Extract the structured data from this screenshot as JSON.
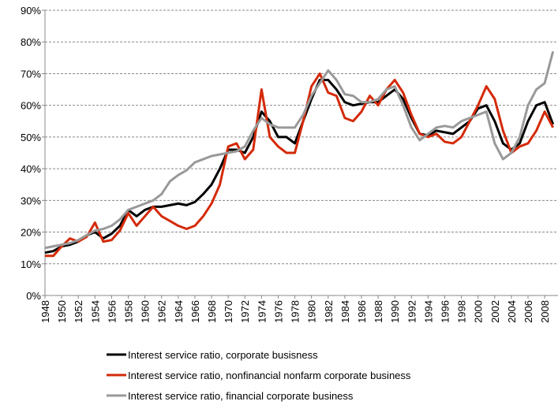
{
  "chart_data": {
    "type": "line",
    "x": [
      1948,
      1949,
      1950,
      1951,
      1952,
      1953,
      1954,
      1955,
      1956,
      1957,
      1958,
      1959,
      1960,
      1961,
      1962,
      1963,
      1964,
      1965,
      1966,
      1967,
      1968,
      1969,
      1970,
      1971,
      1972,
      1973,
      1974,
      1975,
      1976,
      1977,
      1978,
      1979,
      1980,
      1981,
      1982,
      1983,
      1984,
      1985,
      1986,
      1987,
      1988,
      1989,
      1990,
      1991,
      1992,
      1993,
      1994,
      1995,
      1996,
      1997,
      1998,
      1999,
      2000,
      2001,
      2002,
      2003,
      2004,
      2005,
      2006,
      2007,
      2008,
      2009
    ],
    "series": [
      {
        "name": "Interest service ratio, corporate busisness",
        "color": "#000000",
        "values": [
          13.5,
          14,
          15.5,
          16,
          17,
          19,
          20,
          18,
          19.5,
          22,
          27,
          25,
          27,
          28,
          28,
          28.5,
          29,
          28.5,
          29.5,
          32,
          35,
          40,
          46,
          46,
          45,
          50,
          58,
          55,
          50,
          50,
          48,
          55,
          62,
          68,
          68,
          65,
          61,
          60,
          60.5,
          61,
          61,
          63,
          65,
          62,
          56,
          51,
          50.5,
          52,
          51.5,
          51,
          53,
          55,
          59,
          60,
          55,
          48,
          46,
          48,
          55,
          60,
          61,
          54
        ]
      },
      {
        "name": "Interest service ratio, nonfinancial nonfarm corporate business",
        "color": "#d42a0a",
        "values": [
          12.5,
          12.5,
          15.5,
          18,
          17,
          18.5,
          23,
          17,
          17.5,
          20.5,
          26,
          22,
          25,
          28,
          25,
          23.5,
          22,
          21,
          22,
          25,
          29,
          35,
          47,
          48,
          43,
          46,
          65,
          50,
          47,
          45,
          45,
          55,
          66,
          70,
          64,
          63,
          56,
          55,
          58,
          63,
          60,
          65,
          68,
          64,
          57,
          51,
          50,
          51,
          48.5,
          48,
          50,
          55,
          60,
          66,
          62,
          52,
          45,
          47,
          48,
          52,
          58,
          53
        ]
      },
      {
        "name": "Interest service ratio, financial corporate business",
        "color": "#999999",
        "values": [
          15,
          15.5,
          16,
          16.5,
          17.5,
          19,
          20.5,
          21,
          22,
          24,
          27,
          28,
          29,
          30,
          32,
          36,
          38,
          39.5,
          42,
          43,
          44,
          44.5,
          45,
          45.5,
          47,
          52,
          56,
          54,
          53,
          53,
          53,
          57,
          63,
          67,
          71,
          68,
          63.5,
          63,
          61,
          61,
          62,
          65,
          66,
          60,
          53,
          49,
          51,
          53,
          53.5,
          53,
          55,
          56,
          57,
          58,
          48,
          43,
          45,
          50,
          60,
          65,
          67,
          77
        ]
      }
    ],
    "xlim": [
      1948,
      2009.6
    ],
    "xticks": [
      1948,
      1950,
      1952,
      1954,
      1956,
      1958,
      1960,
      1962,
      1964,
      1966,
      1968,
      1970,
      1972,
      1974,
      1976,
      1978,
      1980,
      1982,
      1984,
      1986,
      1988,
      1990,
      1992,
      1994,
      1996,
      1998,
      2000,
      2002,
      2004,
      2006,
      2008
    ],
    "ylim": [
      0,
      90
    ],
    "yticks": [
      {
        "value": 0,
        "label": "0%"
      },
      {
        "value": 10,
        "label": "10%"
      },
      {
        "value": 20,
        "label": "20%"
      },
      {
        "value": 30,
        "label": "30%"
      },
      {
        "value": 40,
        "label": "40%"
      },
      {
        "value": 50,
        "label": "50%"
      },
      {
        "value": 60,
        "label": "60%"
      },
      {
        "value": 70,
        "label": "70%"
      },
      {
        "value": 80,
        "label": "80%"
      },
      {
        "value": 90,
        "label": "90%"
      }
    ],
    "grid": true,
    "legend": "bottom"
  }
}
